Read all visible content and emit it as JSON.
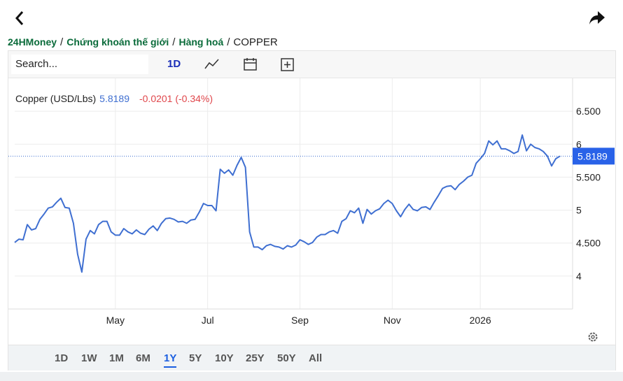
{
  "breadcrumb": [
    "24HMoney",
    "Chứng khoán thế giới",
    "Hàng hoá",
    "COPPER"
  ],
  "breadcrumb_separator": "/",
  "search_placeholder": "Search...",
  "interval": "1D",
  "ranges": [
    "1D",
    "1W",
    "1M",
    "6M",
    "1Y",
    "5Y",
    "10Y",
    "25Y",
    "50Y",
    "All"
  ],
  "active_range": 4,
  "chart_data": {
    "type": "line",
    "last_price": 5.8189,
    "change": "-0.0201 (-0.34%)",
    "series": [
      {
        "name": "Copper (USD/Lbs)",
        "color": "#3f6fd1",
        "values": [
          4.51,
          4.56,
          4.55,
          4.78,
          4.7,
          4.72,
          4.86,
          4.94,
          5.03,
          5.05,
          5.12,
          5.18,
          5.04,
          5.03,
          4.8,
          4.33,
          4.06,
          4.56,
          4.69,
          4.64,
          4.78,
          4.83,
          4.83,
          4.67,
          4.62,
          4.62,
          4.72,
          4.67,
          4.64,
          4.7,
          4.65,
          4.63,
          4.71,
          4.76,
          4.69,
          4.8,
          4.87,
          4.88,
          4.86,
          4.82,
          4.83,
          4.8,
          4.85,
          4.86,
          4.97,
          5.1,
          5.07,
          5.07,
          4.99,
          5.62,
          5.56,
          5.61,
          5.53,
          5.68,
          5.8,
          5.65,
          4.67,
          4.44,
          4.44,
          4.4,
          4.46,
          4.48,
          4.45,
          4.44,
          4.41,
          4.46,
          4.44,
          4.47,
          4.55,
          4.52,
          4.48,
          4.51,
          4.59,
          4.63,
          4.63,
          4.67,
          4.69,
          4.65,
          4.83,
          4.87,
          4.99,
          4.96,
          5.03,
          4.8,
          5.01,
          4.94,
          4.99,
          5.02,
          5.1,
          5.15,
          5.1,
          4.99,
          4.9,
          5.01,
          5.09,
          5.01,
          4.99,
          5.04,
          5.05,
          5.01,
          5.12,
          5.22,
          5.33,
          5.36,
          5.37,
          5.31,
          5.39,
          5.44,
          5.5,
          5.53,
          5.71,
          5.78,
          5.86,
          6.05,
          5.99,
          6.05,
          5.93,
          5.93,
          5.9,
          5.86,
          5.89,
          6.14,
          5.9,
          6.0,
          5.95,
          5.93,
          5.89,
          5.82,
          5.67,
          5.78,
          5.82
        ]
      }
    ],
    "xlim": [
      0,
      133
    ],
    "xticks": [
      {
        "value": 24,
        "label": "May"
      },
      {
        "value": 46,
        "label": "Jul"
      },
      {
        "value": 68,
        "label": "Sep"
      },
      {
        "value": 90,
        "label": "Nov"
      },
      {
        "value": 111,
        "label": "2026"
      }
    ],
    "ylim": [
      3.5,
      7.0
    ],
    "yticks": [
      4,
      {
        "value": 4.5,
        "label": "4.500"
      },
      5,
      {
        "value": 5.5,
        "label": "5.500"
      },
      6,
      {
        "value": 6.5,
        "label": "6.500"
      }
    ],
    "grid": true
  }
}
